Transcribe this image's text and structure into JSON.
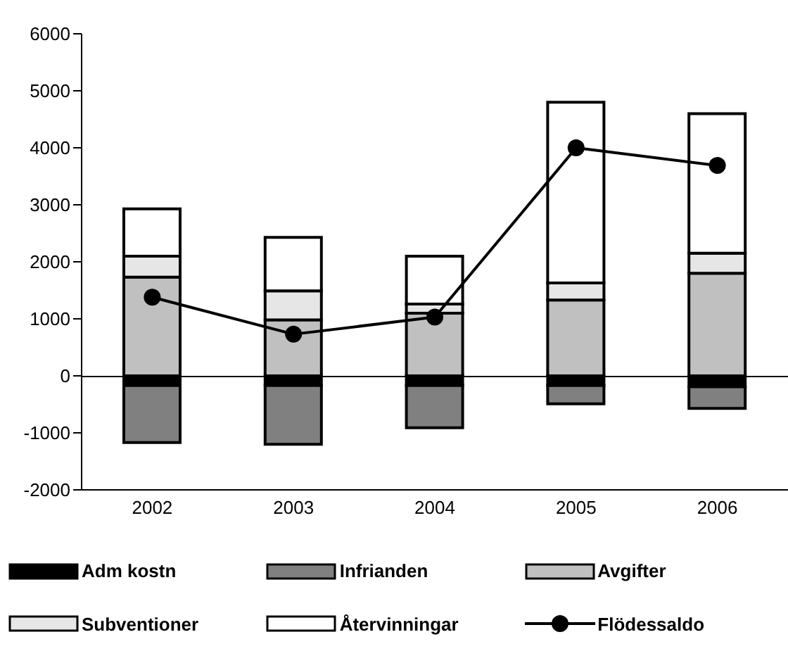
{
  "chart_data": {
    "type": "bar",
    "stacked": true,
    "categories": [
      "2002",
      "2003",
      "2004",
      "2005",
      "2006"
    ],
    "series": [
      {
        "name": "Adm kostn",
        "color": "#000000",
        "values": [
          -170,
          -170,
          -170,
          -170,
          -190
        ]
      },
      {
        "name": "Infrianden",
        "color": "#808080",
        "values": [
          -1000,
          -1030,
          -740,
          -320,
          -380
        ]
      },
      {
        "name": "Avgifter",
        "color": "#c0c0c0",
        "values": [
          1730,
          980,
          1100,
          1330,
          1800
        ]
      },
      {
        "name": "Subventioner",
        "color": "#e6e6e6",
        "values": [
          370,
          510,
          160,
          300,
          350
        ]
      },
      {
        "name": "Återvinningar",
        "color": "#ffffff",
        "values": [
          830,
          940,
          840,
          3170,
          2450
        ]
      },
      {
        "name": "Flödessaldo",
        "type": "line",
        "color": "#000000",
        "values": [
          1380,
          730,
          1030,
          4000,
          3690
        ]
      }
    ],
    "ylim": [
      -2000,
      6000
    ],
    "yticks": [
      -2000,
      -1000,
      0,
      1000,
      2000,
      3000,
      4000,
      5000,
      6000
    ],
    "legend": "bottom",
    "marker": "circle"
  }
}
